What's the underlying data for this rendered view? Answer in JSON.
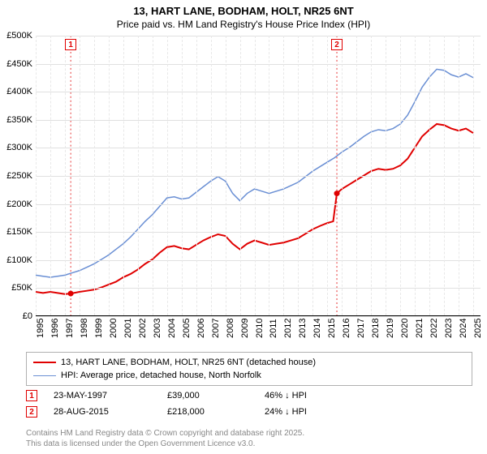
{
  "title": {
    "line1": "13, HART LANE, BODHAM, HOLT, NR25 6NT",
    "line2": "Price paid vs. HM Land Registry's House Price Index (HPI)",
    "fontsize_line1": 13,
    "fontsize_line2": 12
  },
  "chart": {
    "type": "line",
    "background_color": "#ffffff",
    "grid_color": "#e0e0e0",
    "vgrid_color": "#e8e8e8",
    "x": {
      "min": 1995,
      "max": 2025.5,
      "ticks": [
        1995,
        1996,
        1997,
        1998,
        1999,
        2000,
        2001,
        2002,
        2003,
        2004,
        2005,
        2006,
        2007,
        2008,
        2009,
        2010,
        2011,
        2012,
        2013,
        2014,
        2015,
        2016,
        2017,
        2018,
        2019,
        2020,
        2021,
        2022,
        2023,
        2024,
        2025
      ]
    },
    "y": {
      "min": 0,
      "max": 500,
      "ticks": [
        0,
        50,
        100,
        150,
        200,
        250,
        300,
        350,
        400,
        450,
        500
      ],
      "tick_prefix": "£",
      "tick_suffix": "K"
    },
    "series": [
      {
        "name": "13, HART LANE, BODHAM, HOLT, NR25 6NT (detached house)",
        "color": "#e00000",
        "line_width": 2,
        "points": [
          [
            1995,
            42
          ],
          [
            1995.5,
            40
          ],
          [
            1996,
            42
          ],
          [
            1996.5,
            40
          ],
          [
            1997,
            38
          ],
          [
            1997.4,
            39
          ],
          [
            1998,
            42
          ],
          [
            1998.5,
            44
          ],
          [
            1999,
            46
          ],
          [
            1999.5,
            50
          ],
          [
            2000,
            55
          ],
          [
            2000.5,
            60
          ],
          [
            2001,
            68
          ],
          [
            2001.5,
            74
          ],
          [
            2002,
            82
          ],
          [
            2002.5,
            92
          ],
          [
            2003,
            100
          ],
          [
            2003.5,
            112
          ],
          [
            2004,
            122
          ],
          [
            2004.5,
            124
          ],
          [
            2005,
            120
          ],
          [
            2005.5,
            118
          ],
          [
            2006,
            126
          ],
          [
            2006.5,
            134
          ],
          [
            2007,
            140
          ],
          [
            2007.5,
            145
          ],
          [
            2008,
            142
          ],
          [
            2008.5,
            128
          ],
          [
            2009,
            118
          ],
          [
            2009.5,
            128
          ],
          [
            2010,
            134
          ],
          [
            2010.5,
            130
          ],
          [
            2011,
            126
          ],
          [
            2011.5,
            128
          ],
          [
            2012,
            130
          ],
          [
            2012.5,
            134
          ],
          [
            2013,
            138
          ],
          [
            2013.5,
            146
          ],
          [
            2014,
            154
          ],
          [
            2014.5,
            160
          ],
          [
            2015,
            165
          ],
          [
            2015.4,
            168
          ],
          [
            2015.65,
            218
          ],
          [
            2016,
            226
          ],
          [
            2016.5,
            234
          ],
          [
            2017,
            242
          ],
          [
            2017.5,
            250
          ],
          [
            2018,
            258
          ],
          [
            2018.5,
            262
          ],
          [
            2019,
            260
          ],
          [
            2019.5,
            262
          ],
          [
            2020,
            268
          ],
          [
            2020.5,
            280
          ],
          [
            2021,
            300
          ],
          [
            2021.5,
            320
          ],
          [
            2022,
            332
          ],
          [
            2022.5,
            342
          ],
          [
            2023,
            340
          ],
          [
            2023.5,
            334
          ],
          [
            2024,
            330
          ],
          [
            2024.5,
            334
          ],
          [
            2025,
            326
          ]
        ]
      },
      {
        "name": "HPI: Average price, detached house, North Norfolk",
        "color": "#6a8fd4",
        "line_width": 1.5,
        "points": [
          [
            1995,
            72
          ],
          [
            1995.5,
            70
          ],
          [
            1996,
            68
          ],
          [
            1996.5,
            70
          ],
          [
            1997,
            72
          ],
          [
            1997.5,
            76
          ],
          [
            1998,
            80
          ],
          [
            1998.5,
            86
          ],
          [
            1999,
            92
          ],
          [
            1999.5,
            100
          ],
          [
            2000,
            108
          ],
          [
            2000.5,
            118
          ],
          [
            2001,
            128
          ],
          [
            2001.5,
            140
          ],
          [
            2002,
            154
          ],
          [
            2002.5,
            168
          ],
          [
            2003,
            180
          ],
          [
            2003.5,
            195
          ],
          [
            2004,
            210
          ],
          [
            2004.5,
            212
          ],
          [
            2005,
            208
          ],
          [
            2005.5,
            210
          ],
          [
            2006,
            220
          ],
          [
            2006.5,
            230
          ],
          [
            2007,
            240
          ],
          [
            2007.5,
            248
          ],
          [
            2008,
            240
          ],
          [
            2008.5,
            218
          ],
          [
            2009,
            205
          ],
          [
            2009.5,
            218
          ],
          [
            2010,
            226
          ],
          [
            2010.5,
            222
          ],
          [
            2011,
            218
          ],
          [
            2011.5,
            222
          ],
          [
            2012,
            226
          ],
          [
            2012.5,
            232
          ],
          [
            2013,
            238
          ],
          [
            2013.5,
            248
          ],
          [
            2014,
            258
          ],
          [
            2014.5,
            266
          ],
          [
            2015,
            274
          ],
          [
            2015.5,
            282
          ],
          [
            2016,
            292
          ],
          [
            2016.5,
            300
          ],
          [
            2017,
            310
          ],
          [
            2017.5,
            320
          ],
          [
            2018,
            328
          ],
          [
            2018.5,
            332
          ],
          [
            2019,
            330
          ],
          [
            2019.5,
            334
          ],
          [
            2020,
            342
          ],
          [
            2020.5,
            358
          ],
          [
            2021,
            382
          ],
          [
            2021.5,
            408
          ],
          [
            2022,
            426
          ],
          [
            2022.5,
            440
          ],
          [
            2023,
            438
          ],
          [
            2023.5,
            430
          ],
          [
            2024,
            426
          ],
          [
            2024.5,
            432
          ],
          [
            2025,
            425
          ]
        ]
      }
    ],
    "sale_markers": [
      {
        "n": "1",
        "x": 1997.4,
        "y": 39
      },
      {
        "n": "2",
        "x": 2015.65,
        "y": 218
      }
    ]
  },
  "legend": {
    "rows": [
      {
        "color": "#e00000",
        "width": 2,
        "label": "13, HART LANE, BODHAM, HOLT, NR25 6NT (detached house)"
      },
      {
        "color": "#6a8fd4",
        "width": 1.5,
        "label": "HPI: Average price, detached house, North Norfolk"
      }
    ]
  },
  "sales": [
    {
      "n": "1",
      "date": "23-MAY-1997",
      "price": "£39,000",
      "delta": "46% ↓ HPI"
    },
    {
      "n": "2",
      "date": "28-AUG-2015",
      "price": "£218,000",
      "delta": "24% ↓ HPI"
    }
  ],
  "footer": {
    "line1": "Contains HM Land Registry data © Crown copyright and database right 2025.",
    "line2": "This data is licensed under the Open Government Licence v3.0."
  }
}
